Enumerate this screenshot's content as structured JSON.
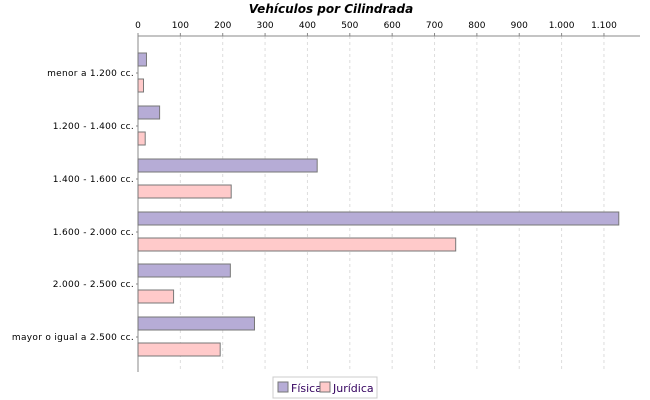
{
  "chart_data": {
    "type": "bar",
    "orientation": "horizontal",
    "title": "Vehículos por Cilindrada",
    "xlabel": "",
    "ylabel": "",
    "categories": [
      "menor a 1.200 cc.",
      "1.200 - 1.400 cc.",
      "1.400 - 1.600 cc.",
      "1.600 - 2.000 cc.",
      "2.000 - 2.500 cc.",
      "mayor o igual a 2.500 cc."
    ],
    "series": [
      {
        "name": "Física",
        "color": "#b6acd6",
        "values": [
          20,
          51,
          423,
          1135,
          218,
          275
        ]
      },
      {
        "name": "Jurídica",
        "color": "#ffcaca",
        "values": [
          13,
          17,
          220,
          750,
          84,
          194
        ]
      }
    ],
    "xlim": [
      0,
      1185
    ],
    "ticks": [
      0,
      100,
      200,
      300,
      400,
      500,
      600,
      700,
      800,
      900,
      1000,
      1100
    ],
    "tick_labels": [
      "0",
      "100",
      "200",
      "300",
      "400",
      "500",
      "600",
      "700",
      "800",
      "900",
      "1.000",
      "1.100"
    ],
    "axis_position": "top",
    "grid": true,
    "legend": "bottom"
  }
}
